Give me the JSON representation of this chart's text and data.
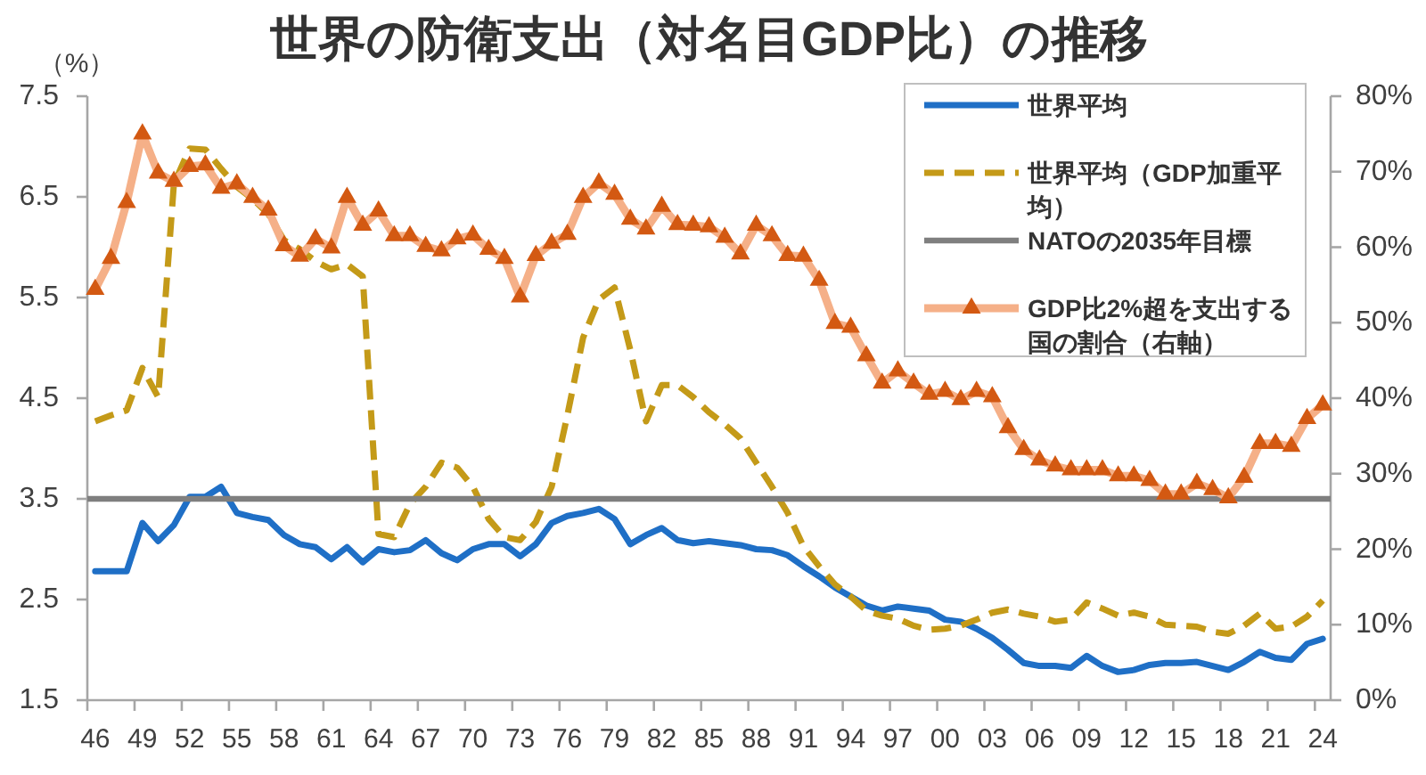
{
  "chart_data": {
    "type": "line",
    "title": "世界の防衛支出（対名目GDP比）の推移",
    "ylabel": "（%）",
    "categories": [
      "46",
      null,
      null,
      "49",
      null,
      null,
      "52",
      null,
      null,
      "55",
      null,
      null,
      "58",
      null,
      null,
      "61",
      null,
      null,
      "64",
      null,
      null,
      "67",
      null,
      null,
      "70",
      null,
      null,
      "73",
      null,
      null,
      "76",
      null,
      null,
      "79",
      null,
      null,
      "82",
      null,
      null,
      "85",
      null,
      null,
      "88",
      null,
      null,
      "91",
      null,
      null,
      "94",
      null,
      null,
      "97",
      null,
      null,
      "00",
      null,
      null,
      "03",
      null,
      null,
      "06",
      null,
      null,
      "09",
      null,
      null,
      "12",
      null,
      null,
      "15",
      null,
      null,
      "18",
      null,
      null,
      "21",
      null,
      null,
      "24"
    ],
    "series": [
      {
        "name": "世界平均",
        "color": "#1f6fc6",
        "values": [
          2.78,
          2.78,
          2.78,
          3.26,
          3.08,
          3.24,
          3.52,
          3.52,
          3.62,
          3.36,
          3.32,
          3.29,
          3.14,
          3.05,
          3.02,
          2.9,
          3.02,
          2.87,
          3.0,
          2.97,
          2.99,
          3.09,
          2.96,
          2.89,
          3.0,
          3.05,
          3.05,
          2.93,
          3.05,
          3.26,
          3.33,
          3.36,
          3.4,
          3.3,
          3.05,
          3.14,
          3.21,
          3.09,
          3.06,
          3.08,
          3.06,
          3.04,
          3.0,
          2.99,
          2.94,
          2.83,
          2.73,
          2.62,
          2.53,
          2.44,
          2.39,
          2.43,
          2.41,
          2.39,
          2.3,
          2.28,
          2.21,
          2.12,
          2.0,
          1.87,
          1.84,
          1.84,
          1.82,
          1.94,
          1.84,
          1.78,
          1.8,
          1.85,
          1.87,
          1.87,
          1.88,
          1.84,
          1.8,
          1.88,
          1.98,
          1.92,
          1.9,
          2.06,
          2.11
        ]
      },
      {
        "name": "世界平均（GDP加重平均）",
        "color": "#c49a18",
        "line_style": "dashed",
        "values": [
          4.27,
          4.33,
          4.38,
          4.8,
          4.51,
          6.63,
          6.98,
          6.97,
          6.78,
          6.6,
          6.48,
          6.33,
          6.07,
          5.98,
          5.86,
          5.78,
          5.83,
          5.71,
          3.15,
          3.12,
          3.45,
          3.62,
          3.86,
          3.81,
          3.62,
          3.3,
          3.12,
          3.09,
          3.27,
          3.62,
          4.33,
          5.1,
          5.48,
          5.6,
          4.98,
          4.27,
          4.63,
          4.63,
          4.51,
          4.36,
          4.24,
          4.1,
          3.86,
          3.62,
          3.36,
          3.03,
          2.83,
          2.65,
          2.53,
          2.39,
          2.34,
          2.31,
          2.24,
          2.2,
          2.21,
          2.24,
          2.3,
          2.37,
          2.4,
          2.36,
          2.33,
          2.28,
          2.3,
          2.47,
          2.41,
          2.34,
          2.37,
          2.33,
          2.25,
          2.24,
          2.23,
          2.18,
          2.16,
          2.24,
          2.36,
          2.21,
          2.23,
          2.33,
          2.49
        ]
      },
      {
        "name": "GDP比2%超を支出する国の割合（右軸）",
        "color": "#f5b088",
        "axis": "y2",
        "marker": "triangle",
        "values": [
          54.4,
          58.5,
          65.9,
          75.0,
          69.8,
          68.7,
          70.7,
          70.9,
          67.8,
          68.4,
          66.6,
          64.9,
          60.2,
          58.8,
          61.1,
          59.9,
          66.6,
          62.9,
          64.8,
          61.5,
          61.5,
          60.1,
          59.5,
          61.1,
          61.6,
          59.7,
          58.5,
          53.4,
          58.9,
          60.5,
          61.7,
          66.6,
          68.5,
          67.0,
          63.7,
          62.4,
          65.4,
          63.0,
          62.9,
          62.7,
          61.3,
          59.1,
          62.9,
          61.5,
          58.9,
          58.8,
          55.6,
          49.9,
          49.4,
          45.6,
          42.0,
          43.6,
          42.0,
          40.5,
          40.9,
          39.8,
          40.9,
          40.2,
          36.1,
          33.2,
          31.8,
          31.0,
          30.5,
          30.5,
          30.5,
          29.7,
          29.7,
          29.1,
          27.3,
          27.3,
          28.7,
          27.9,
          26.8,
          29.5,
          34.0,
          34.0,
          33.6,
          37.3,
          39.1
        ]
      }
    ],
    "ref_lines": [
      {
        "axis": "y",
        "value": 3.5,
        "label": "NATOの2035年目標",
        "color": "#7f7f7f"
      }
    ],
    "ylim": [
      1.5,
      7.5
    ],
    "yticks": [
      1.5,
      2.5,
      3.5,
      4.5,
      5.5,
      6.5,
      7.5
    ],
    "y2lim": [
      0,
      80
    ],
    "y2ticks": [
      {
        "value": 0,
        "label": "0%"
      },
      {
        "value": 10,
        "label": "10%"
      },
      {
        "value": 20,
        "label": "20%"
      },
      {
        "value": 30,
        "label": "30%"
      },
      {
        "value": 40,
        "label": "40%"
      },
      {
        "value": 50,
        "label": "50%"
      },
      {
        "value": 60,
        "label": "60%"
      },
      {
        "value": 70,
        "label": "70%"
      },
      {
        "value": 80,
        "label": "80%"
      }
    ],
    "legend": "top right"
  }
}
